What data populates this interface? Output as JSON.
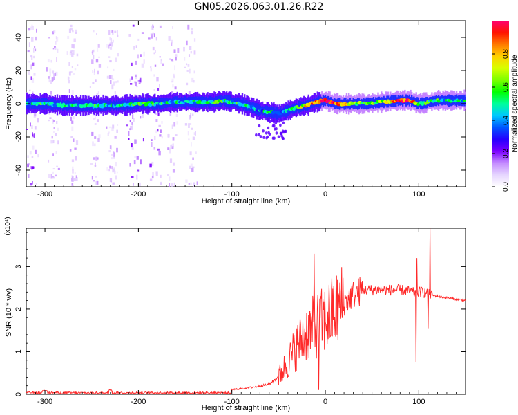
{
  "title": "GN05.2026.063.01.26.R22",
  "chart_data": [
    {
      "type": "heatmap",
      "xlabel": "Height of straight line (km)",
      "ylabel": "Frequency (Hz)",
      "xlim": [
        -320,
        150
      ],
      "ylim": [
        -50,
        50
      ],
      "xticks": [
        "-300",
        "-200",
        "-100",
        "0",
        "100"
      ],
      "yticks": [
        "-40",
        "-20",
        "0",
        "20",
        "40"
      ],
      "colorbar": {
        "label": "Normalized spectral amplitude",
        "range": [
          0.0,
          1.0
        ],
        "ticks": [
          "0.0",
          "0.2",
          "0.4",
          "0.6",
          "0.8"
        ],
        "colors": [
          "#ffffff",
          "#e6d6ff",
          "#c48cff",
          "#7b00ff",
          "#2400ff",
          "#0055ff",
          "#00c8ff",
          "#00ff9c",
          "#00ff00",
          "#7dff00",
          "#d8ff00",
          "#ffd000",
          "#ff7a00",
          "#ff1400",
          "#ff0070"
        ]
      },
      "ridge": {
        "description_free": true,
        "x": [
          -320,
          -300,
          -280,
          -250,
          -220,
          -200,
          -180,
          -160,
          -140,
          -120,
          -110,
          -100,
          -90,
          -80,
          -70,
          -60,
          -50,
          -45,
          -40,
          -35,
          -30,
          -20,
          -10,
          0,
          10,
          20,
          40,
          60,
          80,
          90,
          100,
          110,
          120,
          150
        ],
        "y": [
          0,
          0,
          -1,
          -1,
          -1,
          0,
          0,
          1,
          1,
          1,
          2,
          1,
          0,
          -2,
          -4,
          -5,
          -6,
          -5,
          -4,
          -3,
          -2,
          -1,
          1,
          2,
          0,
          0,
          0,
          1,
          2,
          2,
          0,
          1,
          2,
          2
        ],
        "amplitude": [
          0.45,
          0.5,
          0.45,
          0.5,
          0.45,
          0.55,
          0.5,
          0.45,
          0.5,
          0.55,
          0.55,
          0.5,
          0.5,
          0.45,
          0.4,
          0.45,
          0.35,
          0.4,
          0.45,
          0.5,
          0.65,
          0.75,
          0.85,
          0.9,
          0.95,
          0.8,
          0.55,
          0.65,
          0.9,
          0.95,
          0.6,
          0.55,
          0.5,
          0.45
        ]
      }
    },
    {
      "type": "line",
      "xlabel": "Height of straight line (km)",
      "ylabel": "SNR (10 * v/v)",
      "yscale_label": "(x10⁴)",
      "xlim": [
        -320,
        150
      ],
      "ylim": [
        0,
        3.9
      ],
      "xticks": [
        "-300",
        "-200",
        "-100",
        "0",
        "100"
      ],
      "yticks": [
        "0",
        "1",
        "2",
        "3"
      ],
      "color": "#ff2a2a",
      "envelope": {
        "x": [
          -320,
          -250,
          -200,
          -150,
          -120,
          -100,
          -80,
          -60,
          -50,
          -40,
          -30,
          -20,
          -10,
          0,
          10,
          20,
          30,
          40,
          60,
          80,
          90,
          95,
          100,
          105,
          110,
          120,
          150
        ],
        "y": [
          0.03,
          0.03,
          0.04,
          0.04,
          0.05,
          0.1,
          0.15,
          0.22,
          0.4,
          0.75,
          1.15,
          1.45,
          1.6,
          1.75,
          1.95,
          2.15,
          2.35,
          2.45,
          2.45,
          2.45,
          2.42,
          2.38,
          2.4,
          2.4,
          2.35,
          2.3,
          2.2
        ]
      },
      "spikes": [
        {
          "x": -12,
          "y": 3.3
        },
        {
          "x": -7,
          "y": 0.1
        },
        {
          "x": 97,
          "y": 0.75
        },
        {
          "x": 98,
          "y": 3.2
        },
        {
          "x": 110,
          "y": 1.55
        },
        {
          "x": 112,
          "y": 3.9
        }
      ]
    }
  ]
}
